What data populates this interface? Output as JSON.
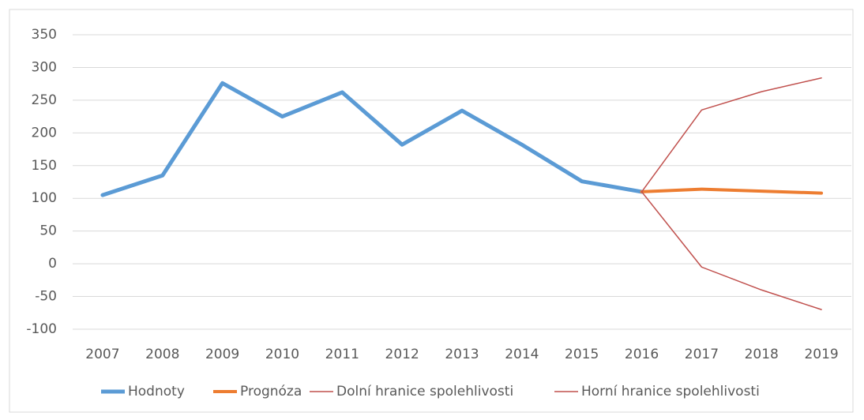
{
  "chart_data": {
    "type": "line",
    "categories": [
      "2007",
      "2008",
      "2009",
      "2010",
      "2011",
      "2012",
      "2013",
      "2014",
      "2015",
      "2016",
      "2017",
      "2018",
      "2019"
    ],
    "series": [
      {
        "name": "Hodnoty",
        "color": "#5b9bd5",
        "width": 5,
        "values": [
          105,
          135,
          276,
          225,
          262,
          182,
          234,
          182,
          126,
          110,
          null,
          null,
          null
        ]
      },
      {
        "name": "Prognóza",
        "color": "#ed7d31",
        "width": 4,
        "values": [
          null,
          null,
          null,
          null,
          null,
          null,
          null,
          null,
          null,
          110,
          114,
          111,
          108
        ]
      },
      {
        "name": "Dolní hranice spolehlivosti",
        "color": "#c0504d",
        "width": 1.5,
        "values": [
          null,
          null,
          null,
          null,
          null,
          null,
          null,
          null,
          null,
          110,
          -5,
          -40,
          -70
        ]
      },
      {
        "name": "Horní hranice spolehlivosti",
        "color": "#c0504d",
        "width": 1.5,
        "values": [
          null,
          null,
          null,
          null,
          null,
          null,
          null,
          null,
          null,
          110,
          235,
          263,
          284
        ]
      }
    ],
    "ylim": [
      -100,
      350
    ],
    "yticks": [
      -100,
      -50,
      0,
      50,
      100,
      150,
      200,
      250,
      300,
      350
    ],
    "grid": true
  }
}
